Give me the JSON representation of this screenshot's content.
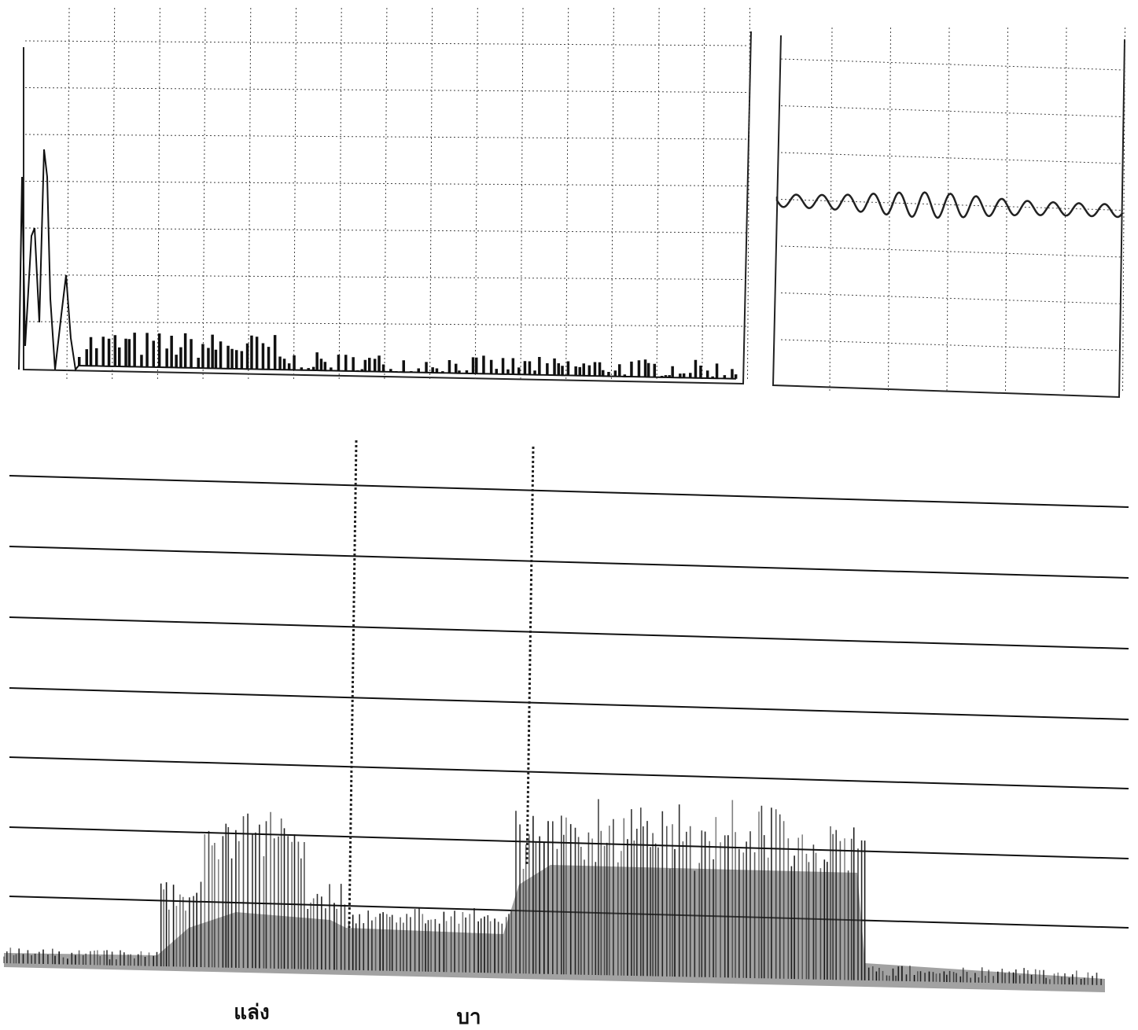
{
  "labels": [
    "แล่ง",
    "บา"
  ]
}
